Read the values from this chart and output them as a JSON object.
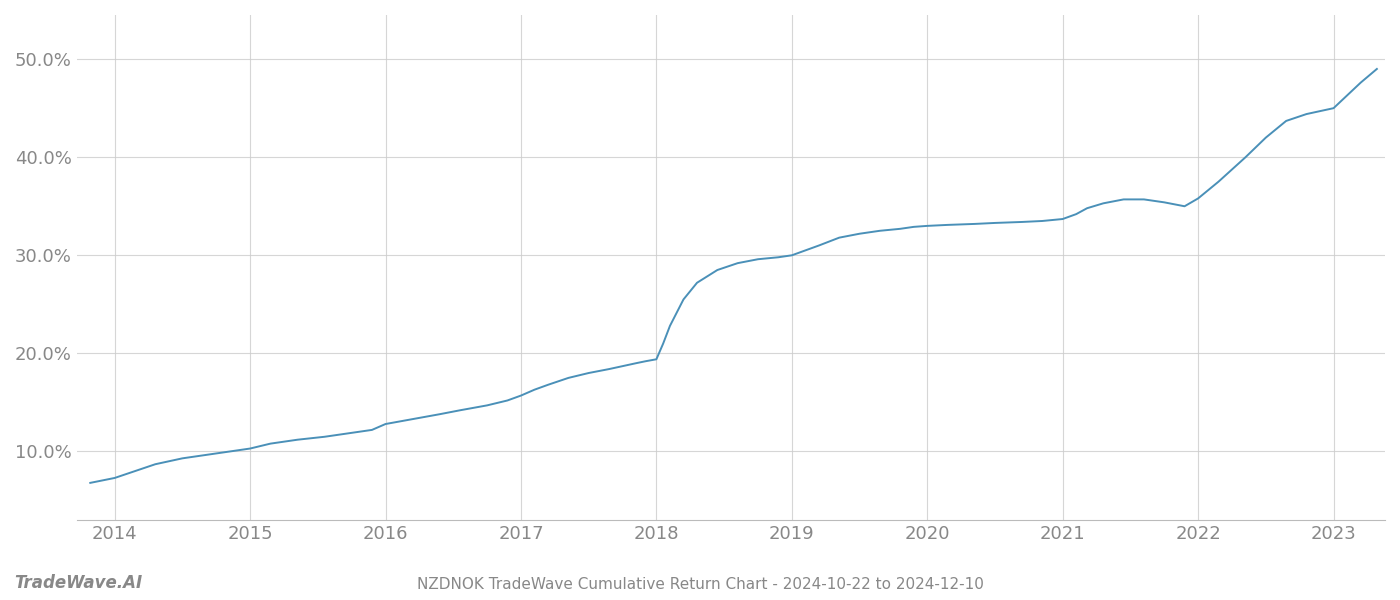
{
  "title": "NZDNOK TradeWave Cumulative Return Chart - 2024-10-22 to 2024-12-10",
  "line_color": "#4a90b8",
  "background_color": "#ffffff",
  "grid_color": "#cccccc",
  "text_color": "#888888",
  "watermark": "TradeWave.AI",
  "x_years": [
    2014,
    2015,
    2016,
    2017,
    2018,
    2019,
    2020,
    2021,
    2022,
    2023
  ],
  "y_ticks": [
    0.1,
    0.2,
    0.3,
    0.4,
    0.5
  ],
  "y_tick_labels": [
    "10.0%",
    "20.0%",
    "30.0%",
    "40.0%",
    "50.0%"
  ],
  "ylim": [
    0.03,
    0.545
  ],
  "xlim_start": 2013.72,
  "xlim_end": 2023.38,
  "data_x": [
    2013.82,
    2014.0,
    2014.15,
    2014.3,
    2014.5,
    2014.7,
    2014.85,
    2015.0,
    2015.15,
    2015.35,
    2015.55,
    2015.75,
    2015.9,
    2016.0,
    2016.2,
    2016.4,
    2016.55,
    2016.75,
    2016.9,
    2017.0,
    2017.1,
    2017.2,
    2017.35,
    2017.5,
    2017.65,
    2017.75,
    2017.85,
    2017.92,
    2018.0,
    2018.05,
    2018.1,
    2018.2,
    2018.3,
    2018.45,
    2018.6,
    2018.75,
    2018.9,
    2019.0,
    2019.1,
    2019.2,
    2019.35,
    2019.5,
    2019.65,
    2019.8,
    2019.9,
    2020.0,
    2020.15,
    2020.35,
    2020.5,
    2020.7,
    2020.85,
    2021.0,
    2021.1,
    2021.18,
    2021.3,
    2021.45,
    2021.6,
    2021.75,
    2021.9,
    2022.0,
    2022.15,
    2022.35,
    2022.5,
    2022.65,
    2022.8,
    2022.9,
    2023.0,
    2023.1,
    2023.2,
    2023.32
  ],
  "data_y": [
    0.068,
    0.073,
    0.08,
    0.087,
    0.093,
    0.097,
    0.1,
    0.103,
    0.108,
    0.112,
    0.115,
    0.119,
    0.122,
    0.128,
    0.133,
    0.138,
    0.142,
    0.147,
    0.152,
    0.157,
    0.163,
    0.168,
    0.175,
    0.18,
    0.184,
    0.187,
    0.19,
    0.192,
    0.194,
    0.21,
    0.228,
    0.255,
    0.272,
    0.285,
    0.292,
    0.296,
    0.298,
    0.3,
    0.305,
    0.31,
    0.318,
    0.322,
    0.325,
    0.327,
    0.329,
    0.33,
    0.331,
    0.332,
    0.333,
    0.334,
    0.335,
    0.337,
    0.342,
    0.348,
    0.353,
    0.357,
    0.357,
    0.354,
    0.35,
    0.358,
    0.375,
    0.4,
    0.42,
    0.437,
    0.444,
    0.447,
    0.45,
    0.463,
    0.476,
    0.49
  ]
}
